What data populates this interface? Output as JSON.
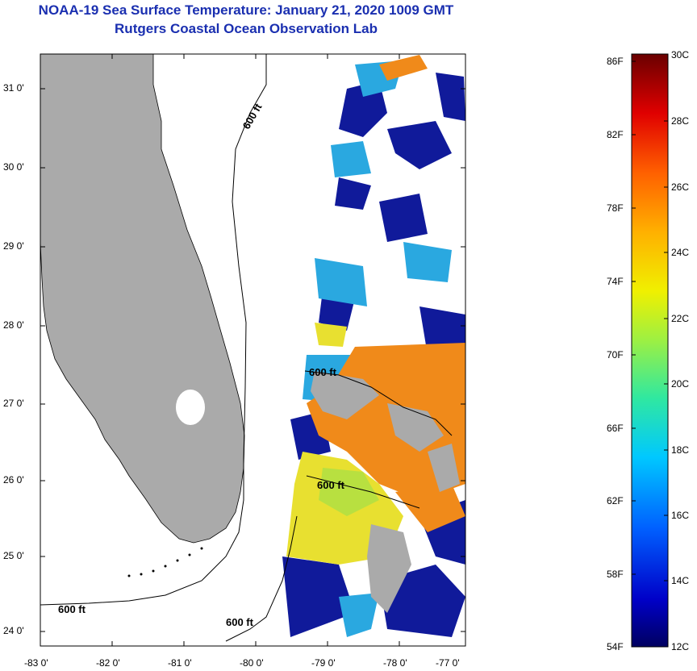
{
  "title": {
    "line1": "NOAA-19 Sea Surface Temperature:  January 21, 2020 1009 GMT",
    "line2": "Rutgers Coastal Ocean Observation Lab"
  },
  "map": {
    "lon_labels": [
      "-83 0'",
      "-82 0'",
      "-81 0'",
      "-80 0'",
      "-79 0'",
      "-78 0'",
      "-77 0'"
    ],
    "lat_labels": [
      "31 0'",
      "30 0'",
      "29 0'",
      "28 0'",
      "27 0'",
      "26 0'",
      "25 0'",
      "24 0'"
    ],
    "contour_labels": [
      "600 ft",
      "600 ft",
      "600 ft",
      "600 ft",
      "600 ft"
    ],
    "colors": {
      "land": "#aaaaaa",
      "sst_warm": "#f08a1a",
      "sst_mid": "#e8e030",
      "sst_cool": "#2aa8e0",
      "sst_cold": "#101a9a"
    }
  },
  "colorbar": {
    "fahrenheit": [
      "86F",
      "82F",
      "78F",
      "74F",
      "70F",
      "66F",
      "62F",
      "58F",
      "54F"
    ],
    "celsius": [
      "30C",
      "28C",
      "26C",
      "24C",
      "22C",
      "20C",
      "18C",
      "16C",
      "14C",
      "12C"
    ]
  }
}
